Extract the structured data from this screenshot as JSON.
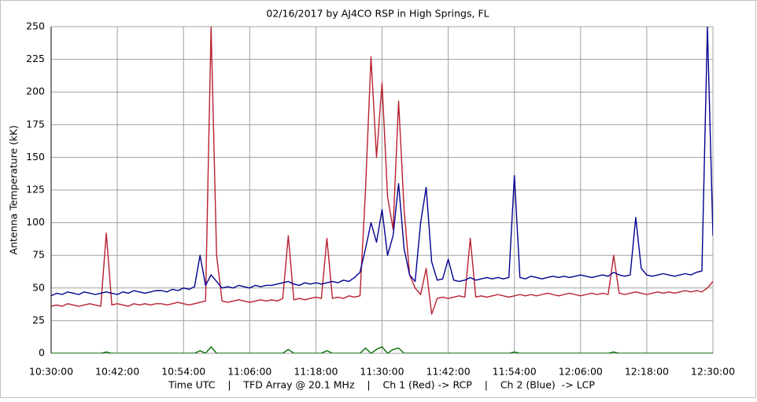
{
  "chart_data": {
    "type": "line",
    "title": "02/16/2017  by  AJ4CO RSP  in  High Springs, FL",
    "ylabel": "Antenna Temperature (kK)",
    "xlabel": "Time UTC    |    TFD Array @ 20.1 MHz    |    Ch 1 (Red) -> RCP    |    Ch 2 (Blue)  -> LCP",
    "x": [
      "10:30:00",
      "10:31:00",
      "10:32:00",
      "10:33:00",
      "10:34:00",
      "10:35:00",
      "10:36:00",
      "10:37:00",
      "10:38:00",
      "10:39:00",
      "10:40:00",
      "10:41:00",
      "10:42:00",
      "10:43:00",
      "10:44:00",
      "10:45:00",
      "10:46:00",
      "10:47:00",
      "10:48:00",
      "10:49:00",
      "10:50:00",
      "10:51:00",
      "10:52:00",
      "10:53:00",
      "10:54:00",
      "10:55:00",
      "10:56:00",
      "10:57:00",
      "10:58:00",
      "10:59:00",
      "11:00:00",
      "11:01:00",
      "11:02:00",
      "11:03:00",
      "11:04:00",
      "11:05:00",
      "11:06:00",
      "11:07:00",
      "11:08:00",
      "11:09:00",
      "11:10:00",
      "11:11:00",
      "11:12:00",
      "11:13:00",
      "11:14:00",
      "11:15:00",
      "11:16:00",
      "11:17:00",
      "11:18:00",
      "11:19:00",
      "11:20:00",
      "11:21:00",
      "11:22:00",
      "11:23:00",
      "11:24:00",
      "11:25:00",
      "11:26:00",
      "11:27:00",
      "11:28:00",
      "11:29:00",
      "11:30:00",
      "11:31:00",
      "11:32:00",
      "11:33:00",
      "11:34:00",
      "11:35:00",
      "11:36:00",
      "11:37:00",
      "11:38:00",
      "11:39:00",
      "11:40:00",
      "11:41:00",
      "11:42:00",
      "11:43:00",
      "11:44:00",
      "11:45:00",
      "11:46:00",
      "11:47:00",
      "11:48:00",
      "11:49:00",
      "11:50:00",
      "11:51:00",
      "11:52:00",
      "11:53:00",
      "11:54:00",
      "11:55:00",
      "11:56:00",
      "11:57:00",
      "11:58:00",
      "11:59:00",
      "12:00:00",
      "12:01:00",
      "12:02:00",
      "12:03:00",
      "12:04:00",
      "12:05:00",
      "12:06:00",
      "12:07:00",
      "12:08:00",
      "12:09:00",
      "12:10:00",
      "12:11:00",
      "12:12:00",
      "12:13:00",
      "12:14:00",
      "12:15:00",
      "12:16:00",
      "12:17:00",
      "12:18:00",
      "12:19:00",
      "12:20:00",
      "12:21:00",
      "12:22:00",
      "12:23:00",
      "12:24:00",
      "12:25:00",
      "12:26:00",
      "12:27:00",
      "12:28:00",
      "12:29:00",
      "12:30:00"
    ],
    "series": [
      {
        "color": "#b8202f",
        "values": [
          36,
          37,
          36,
          38,
          37,
          36,
          37,
          38,
          37,
          36,
          92,
          37,
          38,
          37,
          36,
          38,
          37,
          38,
          37,
          38,
          38,
          37,
          38,
          39,
          38,
          37,
          38,
          39,
          40,
          250,
          75,
          40,
          39,
          40,
          41,
          40,
          39,
          40,
          41,
          40,
          41,
          40,
          42,
          90,
          41,
          42,
          41,
          42,
          43,
          42,
          88,
          42,
          43,
          42,
          44,
          43,
          44,
          125,
          227,
          150,
          207,
          120,
          95,
          193,
          110,
          60,
          50,
          45,
          65,
          30,
          42,
          43,
          42,
          43,
          44,
          43,
          88,
          43,
          44,
          43,
          44,
          45,
          44,
          43,
          44,
          45,
          44,
          45,
          44,
          45,
          46,
          45,
          44,
          45,
          46,
          45,
          44,
          45,
          46,
          45,
          46,
          45,
          75,
          46,
          45,
          46,
          47,
          46,
          45,
          46,
          47,
          46,
          47,
          46,
          47,
          48,
          47,
          48,
          47,
          50,
          55
        ]
      },
      {
        "color": "#000090",
        "values": [
          44,
          46,
          45,
          47,
          46,
          45,
          47,
          46,
          45,
          46,
          47,
          46,
          45,
          47,
          46,
          48,
          47,
          46,
          47,
          48,
          48,
          47,
          49,
          48,
          50,
          49,
          51,
          75,
          52,
          60,
          55,
          50,
          51,
          50,
          52,
          51,
          50,
          52,
          51,
          52,
          52,
          53,
          54,
          55,
          53,
          52,
          54,
          53,
          54,
          53,
          54,
          55,
          54,
          56,
          55,
          58,
          62,
          80,
          100,
          85,
          110,
          75,
          90,
          130,
          80,
          60,
          55,
          100,
          127,
          70,
          56,
          57,
          72,
          56,
          55,
          56,
          58,
          56,
          57,
          58,
          57,
          58,
          57,
          58,
          136,
          58,
          57,
          59,
          58,
          57,
          58,
          59,
          58,
          59,
          58,
          59,
          60,
          59,
          58,
          59,
          60,
          59,
          62,
          60,
          59,
          60,
          104,
          65,
          60,
          59,
          60,
          61,
          60,
          59,
          60,
          61,
          60,
          62,
          63,
          250,
          90
        ]
      },
      {
        "color": "#007000",
        "values": [
          0,
          0,
          0,
          0,
          0,
          0,
          0,
          0,
          0,
          0,
          1,
          0,
          0,
          0,
          0,
          0,
          0,
          0,
          0,
          0,
          0,
          0,
          0,
          0,
          0,
          0,
          0,
          2,
          0,
          5,
          0,
          0,
          0,
          0,
          0,
          0,
          0,
          0,
          0,
          0,
          0,
          0,
          0,
          3,
          0,
          0,
          0,
          0,
          0,
          0,
          2,
          0,
          0,
          0,
          0,
          0,
          0,
          4,
          0,
          3,
          5,
          0,
          3,
          4,
          0,
          0,
          0,
          0,
          0,
          0,
          0,
          0,
          0,
          0,
          0,
          0,
          0,
          0,
          0,
          0,
          0,
          0,
          0,
          0,
          1,
          0,
          0,
          0,
          0,
          0,
          0,
          0,
          0,
          0,
          0,
          0,
          0,
          0,
          0,
          0,
          0,
          0,
          1,
          0,
          0,
          0,
          0,
          0,
          0,
          0,
          0,
          0,
          0,
          0,
          0,
          0,
          0,
          0,
          0,
          0,
          0
        ]
      }
    ],
    "xlim": [
      "10:30:00",
      "12:30:00"
    ],
    "xticks": [
      "10:30:00",
      "10:42:00",
      "10:54:00",
      "11:06:00",
      "11:18:00",
      "11:30:00",
      "11:42:00",
      "11:54:00",
      "12:06:00",
      "12:18:00",
      "12:30:00"
    ],
    "ylim": [
      0,
      250
    ],
    "yticks": [
      0,
      25,
      50,
      75,
      100,
      125,
      150,
      175,
      200,
      225,
      250
    ],
    "grid": true
  }
}
